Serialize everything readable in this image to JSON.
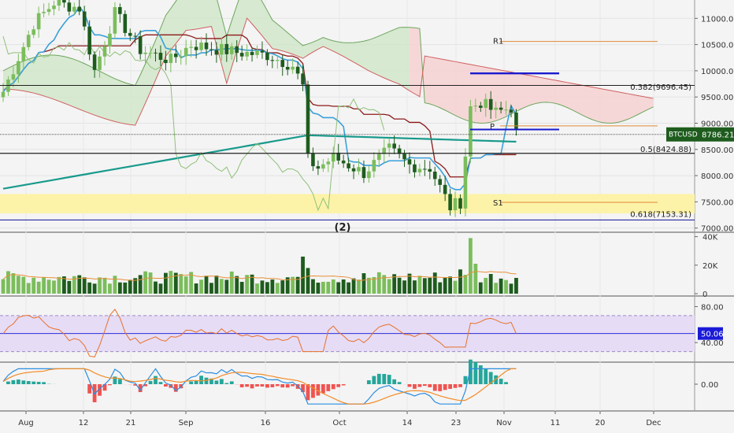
{
  "chart_data": [
    {
      "type": "candlestick",
      "symbol": "BTCUSD",
      "last_price": "8786.21",
      "y_ticks": [
        "11000.00",
        "10500.00",
        "10000.00",
        "9500.00",
        "9000.00",
        "8500.00",
        "8000.00",
        "7500.00",
        "7000.00"
      ],
      "ylim": [
        6950,
        11350
      ],
      "x_ticks": [
        "Aug",
        "12",
        "21",
        "Sep",
        "16",
        "Oct",
        "14",
        "23",
        "Nov",
        "11",
        "20",
        "Dec"
      ],
      "annotations": {
        "r1": "R1",
        "s1": "S1",
        "p": "P",
        "fib_382": "0.382(9696.45)",
        "fib_5": "0.5(8424.88)",
        "fib_618": "0.618(7153.31)",
        "marker": "(2)"
      },
      "levels": {
        "r1": 10560,
        "s1": 7490,
        "p": 8950,
        "fib_382": 9696.45,
        "fib_5": 8424.88,
        "fib_618": 7153.31,
        "blue_upper": 9950,
        "blue_lower": 8880,
        "horizontal_black": 9720
      },
      "colors": {
        "up": "#7bbd5c",
        "down": "#1e5c1e",
        "kijun": "#8b1a1a",
        "tenkan": "#3aa0dc",
        "ma": "#189a8c",
        "cloud_bull": "#cfe6c8",
        "cloud_bear": "#f6cfcf",
        "yellow_zone": "#fcf3a8"
      }
    },
    {
      "type": "bar",
      "name": "volume",
      "y_ticks": [
        "40K",
        "20K",
        "0"
      ],
      "ylim": [
        0,
        42000
      ]
    },
    {
      "type": "line",
      "name": "rsi",
      "y_ticks": [
        "80.00",
        "40.00"
      ],
      "current_value": "50.06",
      "ylim": [
        20,
        90
      ],
      "band": [
        30,
        70
      ]
    },
    {
      "type": "histogram",
      "name": "macd",
      "y_ticks": [
        "0.00"
      ]
    }
  ]
}
